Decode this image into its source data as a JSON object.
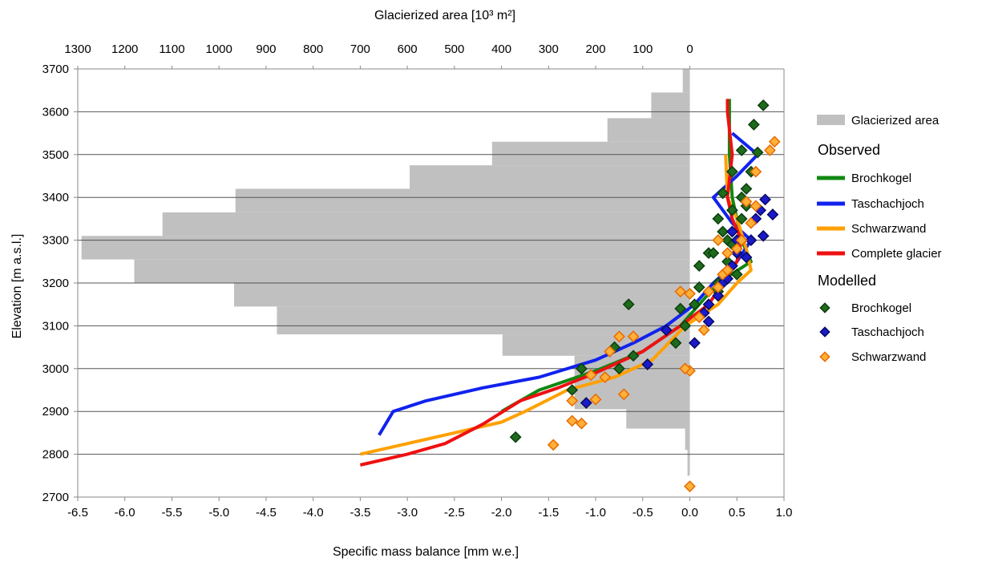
{
  "chart_data": {
    "type": "line",
    "xlabel": "Specific mass balance [mm w.e.]",
    "x2label": "Glacierized area [10³ m²]",
    "ylabel": "Elevation [m a.s.l.]",
    "xlim": [
      -6.5,
      1.0
    ],
    "ylim": [
      2700,
      3700
    ],
    "x_ticks": [
      "-6.5",
      "-6.0",
      "-5.5",
      "-5.0",
      "-4.5",
      "-4.0",
      "-3.5",
      "-3.0",
      "-2.5",
      "-2.0",
      "-1.5",
      "-1.0",
      "-0.5",
      "0.0",
      "0.5",
      "1.0"
    ],
    "x2_ticks": [
      "1300",
      "1200",
      "1100",
      "1000",
      "900",
      "800",
      "700",
      "600",
      "500",
      "400",
      "300",
      "200",
      "100",
      "0"
    ],
    "y_ticks": [
      "2700",
      "2800",
      "2900",
      "3000",
      "3100",
      "3200",
      "3300",
      "3400",
      "3500",
      "3600",
      "3700"
    ],
    "grid": "horizontal",
    "legend_placement": "right",
    "legend": {
      "area_label": "Glacierized area",
      "observed_header": "Observed",
      "modelled_header": "Modelled",
      "observed": [
        "Brochkogel",
        "Taschachjoch",
        "Schwarzwand",
        "Complete glacier"
      ],
      "modelled": [
        "Brochkogel",
        "Taschachjoch",
        "Schwarzwand"
      ]
    },
    "area_bars": {
      "name": "Glacierized area",
      "color": "#c0c0c0",
      "bins": [
        {
          "y0": 2700,
          "y1": 2750,
          "area": 0
        },
        {
          "y0": 2750,
          "y1": 2810,
          "area": 5
        },
        {
          "y0": 2810,
          "y1": 2860,
          "area": 10
        },
        {
          "y0": 2860,
          "y1": 2905,
          "area": 135
        },
        {
          "y0": 2905,
          "y1": 3030,
          "area": 245
        },
        {
          "y0": 3030,
          "y1": 3080,
          "area": 398
        },
        {
          "y0": 3080,
          "y1": 3145,
          "area": 877
        },
        {
          "y0": 3145,
          "y1": 3200,
          "area": 968
        },
        {
          "y0": 3200,
          "y1": 3255,
          "area": 1180
        },
        {
          "y0": 3255,
          "y1": 3310,
          "area": 1292
        },
        {
          "y0": 3310,
          "y1": 3365,
          "area": 1120
        },
        {
          "y0": 3365,
          "y1": 3420,
          "area": 965
        },
        {
          "y0": 3420,
          "y1": 3475,
          "area": 595
        },
        {
          "y0": 3475,
          "y1": 3530,
          "area": 420
        },
        {
          "y0": 3530,
          "y1": 3585,
          "area": 175
        },
        {
          "y0": 3585,
          "y1": 3645,
          "area": 82
        },
        {
          "y0": 3645,
          "y1": 3700,
          "area": 15
        }
      ]
    },
    "observed_series": [
      {
        "name": "Brochkogel",
        "color": "#118811",
        "points": [
          [
            -2.0,
            2900
          ],
          [
            -1.6,
            2950
          ],
          [
            -1.0,
            2995
          ],
          [
            -0.5,
            3040
          ],
          [
            -0.1,
            3100
          ],
          [
            0.1,
            3150
          ],
          [
            0.3,
            3200
          ],
          [
            0.65,
            3250
          ],
          [
            0.55,
            3300
          ],
          [
            0.45,
            3400
          ],
          [
            0.42,
            3500
          ],
          [
            0.42,
            3600
          ],
          [
            0.42,
            3630
          ]
        ]
      },
      {
        "name": "Taschachjoch",
        "color": "#1122ee",
        "points": [
          [
            -3.3,
            2845
          ],
          [
            -3.15,
            2900
          ],
          [
            -2.8,
            2925
          ],
          [
            -2.2,
            2955
          ],
          [
            -1.6,
            2980
          ],
          [
            -1.0,
            3020
          ],
          [
            -0.6,
            3060
          ],
          [
            -0.25,
            3100
          ],
          [
            0.05,
            3150
          ],
          [
            0.25,
            3200
          ],
          [
            0.5,
            3250
          ],
          [
            0.65,
            3300
          ],
          [
            0.45,
            3340
          ],
          [
            0.25,
            3400
          ],
          [
            0.5,
            3450
          ],
          [
            0.72,
            3500
          ],
          [
            0.45,
            3550
          ]
        ]
      },
      {
        "name": "Schwarzwand",
        "color": "#ffa000",
        "points": [
          [
            -3.5,
            2800
          ],
          [
            -3.0,
            2825
          ],
          [
            -2.5,
            2850
          ],
          [
            -2.0,
            2875
          ],
          [
            -1.75,
            2900
          ],
          [
            -1.3,
            2950
          ],
          [
            -0.8,
            2980
          ],
          [
            -0.4,
            3020
          ],
          [
            -0.05,
            3100
          ],
          [
            0.3,
            3150
          ],
          [
            0.5,
            3200
          ],
          [
            0.65,
            3230
          ],
          [
            0.6,
            3280
          ],
          [
            0.5,
            3350
          ],
          [
            0.4,
            3400
          ],
          [
            0.38,
            3500
          ]
        ]
      },
      {
        "name": "Complete glacier",
        "color": "#ee1111",
        "points": [
          [
            -3.5,
            2775
          ],
          [
            -3.0,
            2800
          ],
          [
            -2.6,
            2825
          ],
          [
            -2.2,
            2870
          ],
          [
            -1.8,
            2925
          ],
          [
            -1.4,
            2955
          ],
          [
            -1.0,
            2990
          ],
          [
            -0.5,
            3040
          ],
          [
            -0.1,
            3100
          ],
          [
            0.2,
            3150
          ],
          [
            0.35,
            3200
          ],
          [
            0.5,
            3250
          ],
          [
            0.55,
            3300
          ],
          [
            0.45,
            3350
          ],
          [
            0.4,
            3400
          ],
          [
            0.45,
            3500
          ],
          [
            0.4,
            3600
          ],
          [
            0.4,
            3630
          ]
        ]
      }
    ],
    "modelled_series": [
      {
        "name": "Brochkogel",
        "fill": "#1e6b1e",
        "stroke": "#0d3d0d",
        "points": [
          [
            -1.85,
            2840
          ],
          [
            -1.25,
            2950
          ],
          [
            -1.15,
            3000
          ],
          [
            -0.75,
            3000
          ],
          [
            -0.8,
            3050
          ],
          [
            -0.6,
            3030
          ],
          [
            -0.65,
            3150
          ],
          [
            -0.1,
            3140
          ],
          [
            -0.05,
            3100
          ],
          [
            -0.15,
            3060
          ],
          [
            0.05,
            3150
          ],
          [
            0.1,
            3190
          ],
          [
            0.1,
            3240
          ],
          [
            0.2,
            3270
          ],
          [
            0.25,
            3270
          ],
          [
            0.3,
            3200
          ],
          [
            0.4,
            3250
          ],
          [
            0.35,
            3320
          ],
          [
            0.4,
            3300
          ],
          [
            0.3,
            3350
          ],
          [
            0.45,
            3370
          ],
          [
            0.55,
            3350
          ],
          [
            0.6,
            3380
          ],
          [
            0.35,
            3410
          ],
          [
            0.55,
            3400
          ],
          [
            0.6,
            3420
          ],
          [
            0.45,
            3460
          ],
          [
            0.65,
            3460
          ],
          [
            0.55,
            3510
          ],
          [
            0.72,
            3505
          ],
          [
            0.68,
            3570
          ],
          [
            0.78,
            3615
          ],
          [
            0.5,
            3220
          ],
          [
            0.45,
            3290
          ],
          [
            0.3,
            3180
          ]
        ]
      },
      {
        "name": "Taschachjoch",
        "fill": "#1a1acc",
        "stroke": "#08085e",
        "points": [
          [
            -1.1,
            2920
          ],
          [
            -0.45,
            3010
          ],
          [
            -0.25,
            3090
          ],
          [
            0.05,
            3060
          ],
          [
            0.2,
            3110
          ],
          [
            0.15,
            3130
          ],
          [
            0.2,
            3150
          ],
          [
            0.3,
            3170
          ],
          [
            0.35,
            3200
          ],
          [
            0.45,
            3240
          ],
          [
            0.5,
            3270
          ],
          [
            0.55,
            3300
          ],
          [
            0.6,
            3260
          ],
          [
            0.65,
            3300
          ],
          [
            0.7,
            3350
          ],
          [
            0.75,
            3370
          ],
          [
            0.8,
            3395
          ],
          [
            0.88,
            3360
          ],
          [
            0.78,
            3310
          ],
          [
            0.4,
            3210
          ],
          [
            0.5,
            3300
          ],
          [
            0.45,
            3320
          ]
        ]
      },
      {
        "name": "Schwarzwand",
        "fill": "#ffb038",
        "stroke": "#e86a00",
        "points": [
          [
            0.0,
            2725
          ],
          [
            -1.45,
            2822
          ],
          [
            -1.25,
            2878
          ],
          [
            -1.15,
            2872
          ],
          [
            -1.25,
            2925
          ],
          [
            -1.0,
            2928
          ],
          [
            -1.05,
            2985
          ],
          [
            -0.9,
            2980
          ],
          [
            -0.75,
            3075
          ],
          [
            -0.6,
            3075
          ],
          [
            -0.85,
            3040
          ],
          [
            -0.7,
            2940
          ],
          [
            0.0,
            2995
          ],
          [
            -0.05,
            3000
          ],
          [
            0.0,
            3175
          ],
          [
            0.1,
            3120
          ],
          [
            0.15,
            3090
          ],
          [
            0.2,
            3180
          ],
          [
            0.3,
            3190
          ],
          [
            0.35,
            3220
          ],
          [
            0.4,
            3230
          ],
          [
            0.4,
            3270
          ],
          [
            0.5,
            3280
          ],
          [
            0.55,
            3300
          ],
          [
            0.65,
            3340
          ],
          [
            0.7,
            3380
          ],
          [
            0.6,
            3390
          ],
          [
            0.7,
            3460
          ],
          [
            0.85,
            3510
          ],
          [
            0.9,
            3530
          ],
          [
            -0.1,
            3180
          ],
          [
            0.3,
            3300
          ]
        ]
      }
    ]
  }
}
